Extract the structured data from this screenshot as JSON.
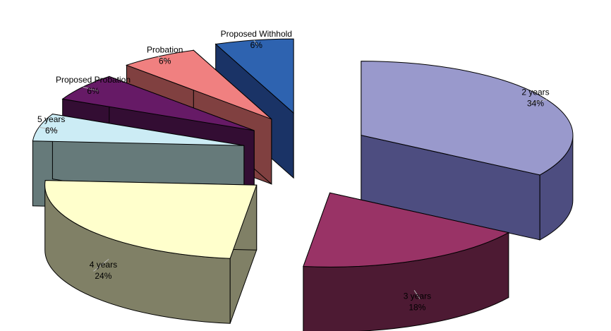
{
  "chart_data": {
    "type": "pie",
    "title": "",
    "exploded": true,
    "three_d": true,
    "slices": [
      {
        "label": "2 years",
        "value": 34,
        "value_label": "34%",
        "top_color": "#9999CC",
        "side_color": "#4D4D80"
      },
      {
        "label": "3 years",
        "value": 18,
        "value_label": "18%",
        "top_color": "#993366",
        "side_color": "#4D1A33"
      },
      {
        "label": "4 years",
        "value": 24,
        "value_label": "24%",
        "top_color": "#FFFFCC",
        "side_color": "#808066"
      },
      {
        "label": "5 years",
        "value": 6,
        "value_label": "6%",
        "top_color": "#CCECF5",
        "side_color": "#667A7A"
      },
      {
        "label": "Proposed Probation",
        "value": 6,
        "value_label": "6%",
        "top_color": "#661A66",
        "side_color": "#330D33"
      },
      {
        "label": "Probation",
        "value": 6,
        "value_label": "6%",
        "top_color": "#F08080",
        "side_color": "#804040"
      },
      {
        "label": "Proposed Withhold",
        "value": 6,
        "value_label": "6%",
        "top_color": "#2E63B0",
        "side_color": "#1A3366"
      }
    ]
  }
}
